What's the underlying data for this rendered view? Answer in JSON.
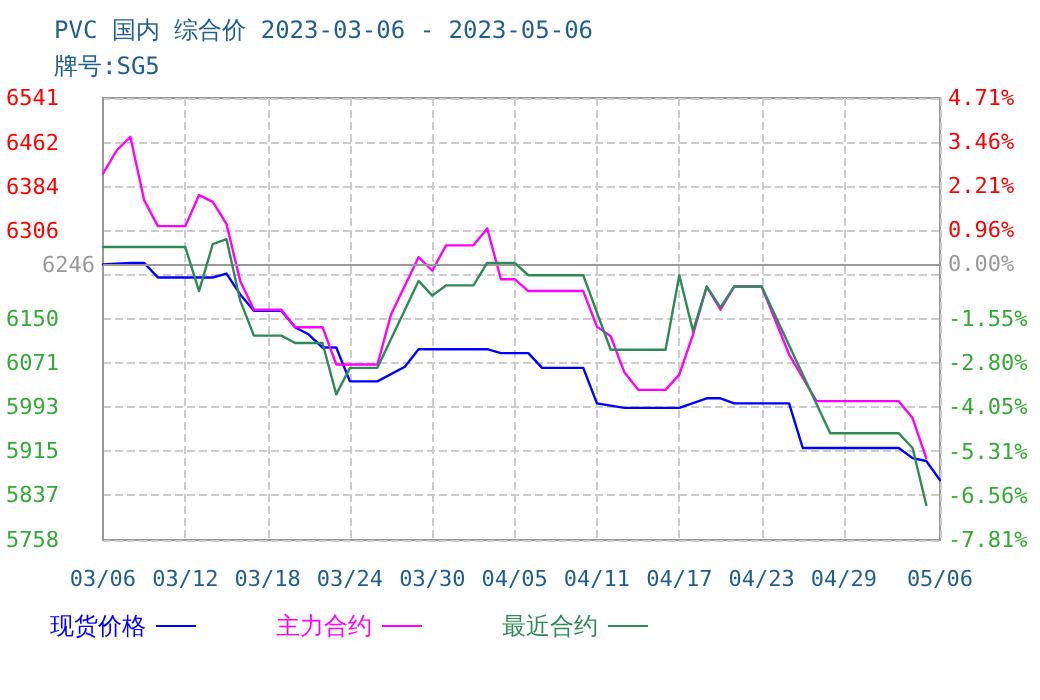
{
  "chart_data": {
    "type": "line",
    "title": "PVC 国内 综合价 2023-03-06 - 2023-05-06",
    "subtitle": "牌号:SG5",
    "xlim": [
      "--03-06",
      "--05-06"
    ],
    "xticks": [
      {
        "value": "--03-06",
        "label": "03/06"
      },
      {
        "value": "--03-12",
        "label": "03/12"
      },
      {
        "value": "--03-18",
        "label": "03/18"
      },
      {
        "value": "--03-24",
        "label": "03/24"
      },
      {
        "value": "--03-30",
        "label": "03/30"
      },
      {
        "value": "--04-05",
        "label": "04/05"
      },
      {
        "value": "--04-11",
        "label": "04/11"
      },
      {
        "value": "--04-17",
        "label": "04/17"
      },
      {
        "value": "--04-23",
        "label": "04/23"
      },
      {
        "value": "--04-29",
        "label": "04/29"
      },
      {
        "value": "--05-06",
        "label": "05/06"
      }
    ],
    "ylim": [
      5758,
      6541
    ],
    "yticks": [
      5758,
      5837,
      5915,
      5993,
      6071,
      6150,
      {
        "value": 6227.8,
        "label": null
      },
      6306,
      6384,
      6462,
      6541
    ],
    "y2lim": [
      -7.81,
      4.71
    ],
    "y2ticks": [
      {
        "value": -7.81,
        "label": "-7.81%"
      },
      {
        "value": -6.56,
        "label": "-6.56%"
      },
      {
        "value": -5.31,
        "label": "-5.31%"
      },
      {
        "value": -4.05,
        "label": "-4.05%"
      },
      {
        "value": -2.8,
        "label": "-2.80%"
      },
      {
        "value": -1.55,
        "label": "-1.55%"
      },
      {
        "value": 0,
        "label": "0.00%"
      },
      {
        "value": 0.96,
        "label": "0.96%"
      },
      {
        "value": 2.21,
        "label": "2.21%"
      },
      {
        "value": 3.46,
        "label": "3.46%"
      },
      {
        "value": 4.71,
        "label": "4.71%"
      }
    ],
    "ref_lines": [
      {
        "axis": "y",
        "value": 6246,
        "label": "6246",
        "color": "#999999"
      }
    ],
    "grid": true,
    "legend": "bottom",
    "marker": "none",
    "line_style": "solid",
    "series": [
      {
        "name": "现货价格",
        "color": "#0000ff",
        "x": [
          "--03-06",
          "--03-08",
          "--03-09",
          "--03-10",
          "--03-14",
          "--03-15",
          "--03-16",
          "--03-17",
          "--03-19",
          "--03-20",
          "--03-21",
          "--03-22",
          "--03-23",
          "--03-24",
          "--03-26",
          "--03-28",
          "--03-29",
          "--04-03",
          "--04-04",
          "--04-06",
          "--04-07",
          "--04-10",
          "--04-11",
          "--04-13",
          "--04-17",
          "--04-19",
          "--04-20",
          "--04-21",
          "--04-25",
          "--04-26",
          "--05-03",
          "--05-04",
          "--05-05",
          "--05-06"
        ],
        "values": [
          6246,
          6249,
          6249,
          6223,
          6223,
          6230,
          6193,
          6164,
          6164,
          6135,
          6122,
          6099,
          6099,
          6039,
          6039,
          6065,
          6096,
          6096,
          6089,
          6089,
          6063,
          6063,
          6000,
          5992,
          5992,
          6009,
          6009,
          6000,
          6000,
          5921,
          5921,
          5903,
          5898,
          5864
        ]
      },
      {
        "name": "主力合约",
        "color": "#ff00ff",
        "x": [
          "--03-06",
          "--03-07",
          "--03-08",
          "--03-09",
          "--03-10",
          "--03-12",
          "--03-13",
          "--03-14",
          "--03-15",
          "--03-16",
          "--03-17",
          "--03-19",
          "--03-20",
          "--03-22",
          "--03-23",
          "--03-26",
          "--03-27",
          "--03-29",
          "--03-30",
          "--03-31",
          "--04-02",
          "--04-03",
          "--04-04",
          "--04-05",
          "--04-06",
          "--04-10",
          "--04-11",
          "--04-12",
          "--04-13",
          "--04-14",
          "--04-16",
          "--04-17",
          "--04-18",
          "--04-19",
          "--04-20",
          "--04-21",
          "--04-23",
          "--04-25",
          "--04-27",
          "--05-03",
          "--05-04",
          "--05-05"
        ],
        "values": [
          6407,
          6448,
          6472,
          6360,
          6314,
          6314,
          6369,
          6357,
          6318,
          6217,
          6166,
          6166,
          6135,
          6135,
          6069,
          6069,
          6158,
          6259,
          6235,
          6280,
          6280,
          6310,
          6220,
          6220,
          6199,
          6199,
          6136,
          6119,
          6055,
          6024,
          6024,
          6051,
          6122,
          6207,
          6166,
          6207,
          6207,
          6087,
          6004,
          6004,
          5974,
          5903
        ]
      },
      {
        "name": "最近合约",
        "color": "#2e8b57",
        "x": [
          "--03-06",
          "--03-12",
          "--03-13",
          "--03-14",
          "--03-15",
          "--03-16",
          "--03-17",
          "--03-19",
          "--03-20",
          "--03-22",
          "--03-23",
          "--03-24",
          "--03-26",
          "--03-29",
          "--03-30",
          "--03-31",
          "--04-02",
          "--04-03",
          "--04-05",
          "--04-06",
          "--04-10",
          "--04-12",
          "--04-16",
          "--04-17",
          "--04-18",
          "--04-19",
          "--04-20",
          "--04-21",
          "--04-23",
          "--04-28",
          "--05-03",
          "--05-04",
          "--05-05"
        ],
        "values": [
          6277,
          6277,
          6199,
          6282,
          6291,
          6182,
          6120,
          6120,
          6107,
          6107,
          6016,
          6063,
          6063,
          6217,
          6191,
          6209,
          6209,
          6249,
          6249,
          6227,
          6227,
          6095,
          6095,
          6227,
          6128,
          6207,
          6170,
          6207,
          6207,
          5947,
          5947,
          5921,
          5820
        ]
      }
    ]
  }
}
